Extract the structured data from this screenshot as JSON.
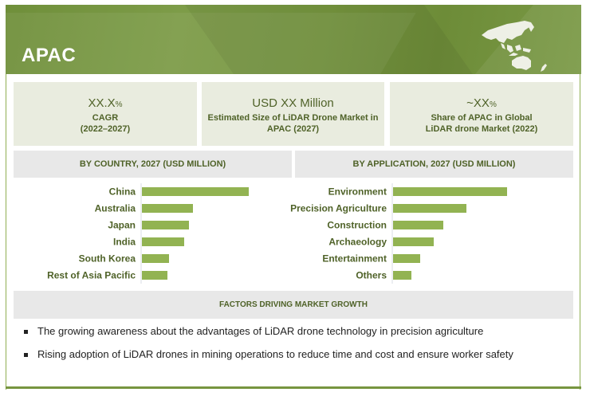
{
  "header": {
    "title": "APAC",
    "map_icon": "asia-pacific-map-icon"
  },
  "kpis": [
    {
      "value": "XX.X",
      "unit": "%",
      "line1": "CAGR",
      "line2": "(2022–2027)"
    },
    {
      "value": "USD XX Million",
      "unit": "",
      "line1": "Estimated Size of LiDAR Drone Market in",
      "line2": "APAC (2027)"
    },
    {
      "value": "~XX",
      "unit": "%",
      "line1": "Share of APAC in Global",
      "line2": "LiDAR drone Market (2022)"
    }
  ],
  "colors": {
    "brand_green": "#77953f",
    "bar_green": "#92b352",
    "text_green": "#4f6228",
    "panel_bg": "#e9ecdf",
    "section_bg": "#e8e8e8"
  },
  "chart_data": [
    {
      "type": "bar",
      "orientation": "horizontal",
      "title": "BY COUNTRY, 2027 (USD MILLION)",
      "categories": [
        "China",
        "Australia",
        "Japan",
        "India",
        "South Korea",
        "Rest of Asia Pacific"
      ],
      "values": [
        134,
        64,
        59,
        53,
        34,
        32
      ],
      "value_note": "relative bar lengths; no numeric labels shown",
      "xlabel": "",
      "ylabel": "",
      "xlim": [
        0,
        134
      ],
      "grid": false,
      "legend": "none"
    },
    {
      "type": "bar",
      "orientation": "horizontal",
      "title": "BY APPLICATION, 2027 (USD MILLION)",
      "categories": [
        "Environment",
        "Precision Agriculture",
        "Construction",
        "Archaeology",
        "Entertainment",
        "Others"
      ],
      "values": [
        143,
        92,
        63,
        51,
        34,
        23
      ],
      "value_note": "relative bar lengths; no numeric labels shown",
      "xlabel": "",
      "ylabel": "",
      "xlim": [
        0,
        143
      ],
      "grid": false,
      "legend": "none"
    }
  ],
  "factors": {
    "title": "FACTORS DRIVING MARKET GROWTH",
    "items": [
      "The growing awareness about the advantages of LiDAR drone technology in  precision agriculture",
      "Rising adoption of LiDAR drones in mining operations to reduce time and cost and ensure worker safety"
    ]
  }
}
